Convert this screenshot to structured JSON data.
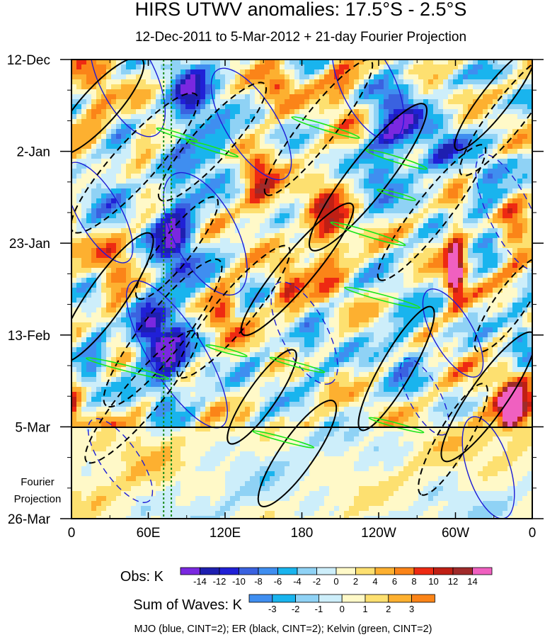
{
  "chart_data": {
    "type": "heatmap",
    "title": "HIRS UTWV anomalies: 17.5°S - 2.5°S",
    "subtitle": "12-Dec-2011 to 5-Mar-2012 + 21-day Fourier Projection",
    "xlabel": "",
    "ylabel": "",
    "x_ticks": [
      "0",
      "60E",
      "120E",
      "180",
      "120W",
      "60W",
      "0"
    ],
    "y_ticks": [
      "12-Dec",
      "2-Jan",
      "23-Jan",
      "13-Feb",
      "5-Mar",
      "26-Mar"
    ],
    "x_range_deg": [
      0,
      360
    ],
    "y_range_days": [
      0,
      105
    ],
    "observation_end_day": 84,
    "forecast_label": [
      "Fourier",
      "Projection"
    ],
    "dotted_lines_lon": [
      72,
      78
    ],
    "obs_colorbar": {
      "label": "Obs: K",
      "levels": [
        "-14",
        "-12",
        "-10",
        "-8",
        "-6",
        "-4",
        "-2",
        "0",
        "2",
        "4",
        "6",
        "8",
        "10",
        "12",
        "14"
      ],
      "colors": [
        "#7a28e0",
        "#1e1fb0",
        "#2020d6",
        "#3a62e0",
        "#3f8ef0",
        "#19b4ee",
        "#8fd2f5",
        "#cdeefa",
        "#fff9c8",
        "#fde070",
        "#fdb030",
        "#fb8418",
        "#ee2a12",
        "#c01f14",
        "#a02a2a",
        "#f060c0"
      ]
    },
    "waves_colorbar": {
      "label": "Sum of Waves: K",
      "levels": [
        "-3",
        "-2",
        "-1",
        "0",
        "1",
        "2",
        "3"
      ],
      "colors": [
        "#3f8ef0",
        "#19b4ee",
        "#8fd2f5",
        "#cdeefa",
        "#fff9c8",
        "#fde070",
        "#fdb030",
        "#fb8418"
      ]
    },
    "series": [
      {
        "name": "MJO",
        "color": "#1c1cd6",
        "cint": 2,
        "phase_speed_deg_per_day": 5
      },
      {
        "name": "ER",
        "color": "#000000",
        "cint": 2,
        "phase_speed_deg_per_day": -3
      },
      {
        "name": "Kelvin",
        "color": "#19e619",
        "cint": 2,
        "phase_speed_deg_per_day": 15
      }
    ],
    "legend_text": "MJO (blue, CINT=2); ER (black, CINT=2); Kelvin (green, CINT=2)"
  }
}
